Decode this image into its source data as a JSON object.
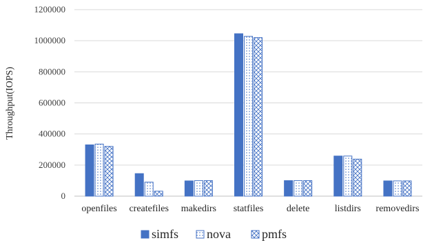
{
  "chart_data": {
    "type": "bar",
    "ylabel": "Throughput(IOPS)",
    "xlabel": "",
    "ylim": [
      0,
      1200000
    ],
    "yticks": [
      0,
      200000,
      400000,
      600000,
      800000,
      1000000,
      1200000
    ],
    "ytick_labels": [
      "0",
      "200000",
      "400000",
      "600000",
      "800000",
      "1000000",
      "1200000"
    ],
    "grid": true,
    "legend_position": "bottom",
    "categories": [
      "openfiles",
      "createfiles",
      "makedirs",
      "statfiles",
      "delete",
      "listdirs",
      "removedirs"
    ],
    "series": [
      {
        "name": "simfs",
        "color": "#4472C4",
        "pattern": "solid",
        "values": [
          330000,
          145000,
          98000,
          1045000,
          100000,
          258000,
          98000
        ]
      },
      {
        "name": "nova",
        "color": "#4472C4",
        "pattern": "dots",
        "values": [
          335000,
          90000,
          100000,
          1028000,
          100000,
          258000,
          98000
        ]
      },
      {
        "name": "pmfs",
        "color": "#4472C4",
        "pattern": "crosshatch",
        "values": [
          320000,
          32000,
          100000,
          1020000,
          100000,
          238000,
          98000
        ]
      }
    ]
  }
}
